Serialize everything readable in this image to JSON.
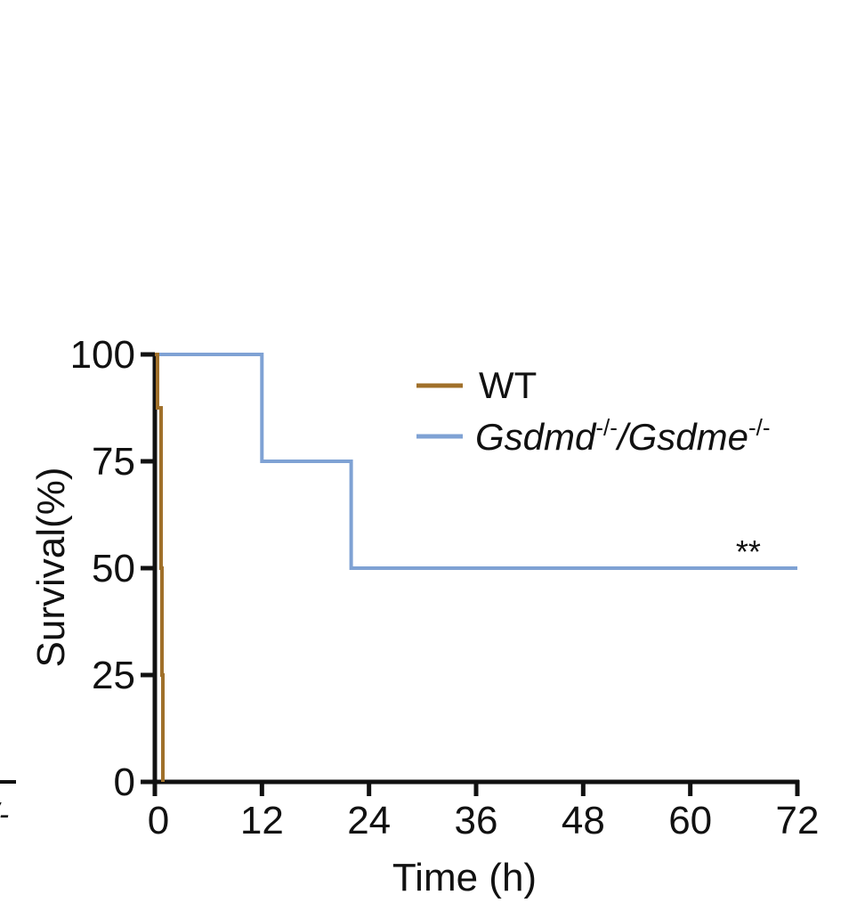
{
  "chart_data": {
    "type": "line",
    "step": true,
    "xlabel": "Time (h)",
    "ylabel": "Survival(%)",
    "xlim": [
      0,
      72
    ],
    "ylim": [
      0,
      100
    ],
    "xticks": [
      0,
      12,
      24,
      36,
      48,
      60,
      72
    ],
    "yticks": [
      0,
      25,
      50,
      75,
      100
    ],
    "grid": false,
    "legend_position": "top-right",
    "series": [
      {
        "name": "WT",
        "color": "#A0702A",
        "points": [
          [
            0,
            100
          ],
          [
            0.3,
            100
          ],
          [
            0.3,
            87.5
          ],
          [
            0.7,
            87.5
          ],
          [
            0.7,
            50
          ],
          [
            0.8,
            50
          ],
          [
            0.8,
            25
          ],
          [
            0.9,
            25
          ],
          [
            0.9,
            0
          ]
        ]
      },
      {
        "name": "Gsdmd-/-/Gsdme-/-",
        "color": "#7FA2D4",
        "points": [
          [
            0,
            100
          ],
          [
            12,
            100
          ],
          [
            12,
            75
          ],
          [
            22,
            75
          ],
          [
            22,
            50
          ],
          [
            72,
            50
          ]
        ]
      }
    ],
    "annotations": [
      {
        "text": "**",
        "x": 66.5,
        "y": 50
      }
    ]
  },
  "legend": {
    "wt_label": "WT",
    "ko_label_part1": "Gsdmd",
    "ko_label_sup1": "-/-",
    "ko_label_part2": "/Gsdme",
    "ko_label_sup2": "-/-"
  },
  "edge_fragment": {
    "text": "-/-"
  }
}
